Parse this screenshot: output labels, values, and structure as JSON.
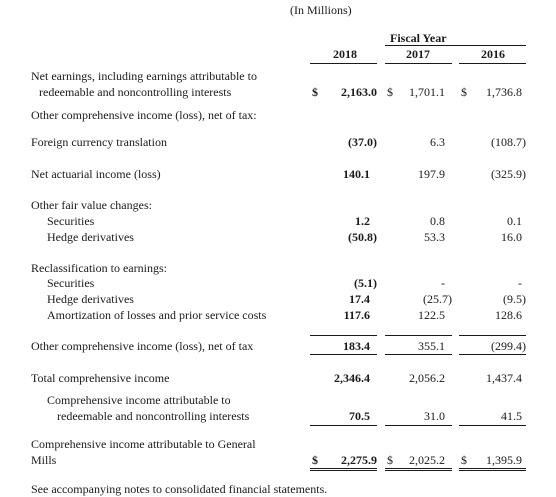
{
  "header": {
    "units": "(In Millions)",
    "period_label": "Fiscal Year",
    "years": [
      "2018",
      "2017",
      "2016"
    ]
  },
  "rows": {
    "net_earnings": {
      "label_line1": "Net earnings, including earnings attributable to",
      "label_line2": "redeemable and noncontrolling interests",
      "currency": "$",
      "values": [
        "2,163.0",
        "1,701.1",
        "1,736.8"
      ]
    },
    "oci_heading": {
      "label": "Other comprehensive income (loss), net of tax:"
    },
    "fx_translation": {
      "label": "Foreign currency translation",
      "values": [
        "(37.0)",
        "6.3",
        "(108.7)"
      ]
    },
    "net_actuarial": {
      "label": "Net actuarial income (loss)",
      "values": [
        "140.1",
        "197.9",
        "(325.9)"
      ]
    },
    "fair_value_heading": {
      "label": "Other fair value changes:"
    },
    "fv_securities": {
      "label": "Securities",
      "values": [
        "1.2",
        "0.8",
        "0.1"
      ]
    },
    "fv_hedge": {
      "label": "Hedge derivatives",
      "values": [
        "(50.8)",
        "53.3",
        "16.0"
      ]
    },
    "reclass_heading": {
      "label": "Reclassification to earnings:"
    },
    "rc_securities": {
      "label": "Securities",
      "values": [
        "(5.1)",
        "-",
        "-"
      ]
    },
    "rc_hedge": {
      "label": "Hedge derivatives",
      "values": [
        "17.4",
        "(25.7)",
        "(9.5)"
      ]
    },
    "rc_amortization": {
      "label": "Amortization of losses and prior service costs",
      "values": [
        "117.6",
        "122.5",
        "128.6"
      ]
    },
    "oci_total": {
      "label": "Other comprehensive income (loss), net of tax",
      "values": [
        "183.4",
        "355.1",
        "(299.4)"
      ]
    },
    "total_comprehensive": {
      "label": "Total comprehensive income",
      "values": [
        "2,346.4",
        "2,056.2",
        "1,437.4"
      ]
    },
    "nci_comprehensive": {
      "label_line1": "Comprehensive income attributable to",
      "label_line2": "redeemable and noncontrolling interests",
      "values": [
        "70.5",
        "31.0",
        "41.5"
      ]
    },
    "gm_comprehensive": {
      "label_line1": "Comprehensive income attributable to General",
      "label_line2": "Mills",
      "currency": "$",
      "values": [
        "2,275.9",
        "2,025.2",
        "1,395.9"
      ]
    }
  },
  "footer": {
    "note": "See accompanying notes to consolidated financial statements."
  }
}
